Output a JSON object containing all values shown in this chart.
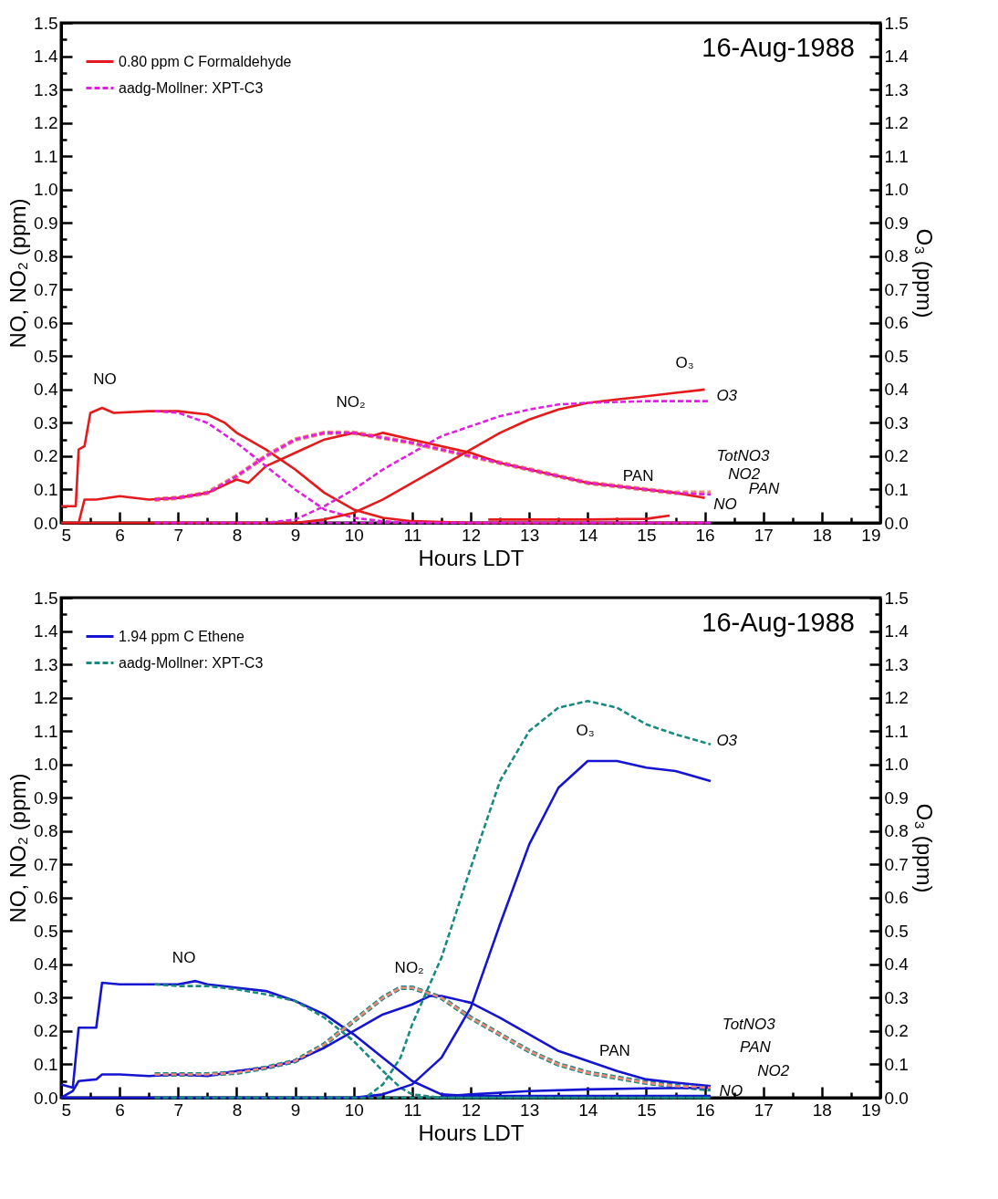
{
  "chart_data": [
    {
      "type": "line",
      "xlabel": "Hours LDT",
      "ylabel": "NO, NO₂ (ppm)",
      "y2label": "O₃ (ppm)",
      "legend": "top left",
      "xlim": [
        5,
        19
      ],
      "xticks": [
        5,
        {
          "value": 5.5,
          "label": null
        },
        6,
        {
          "value": 6.5,
          "label": null
        },
        7,
        {
          "value": 7.5,
          "label": null
        },
        8,
        {
          "value": 8.5,
          "label": null
        },
        9,
        {
          "value": 9.5,
          "label": null
        },
        10,
        {
          "value": 10.5,
          "label": null
        },
        11,
        {
          "value": 11.5,
          "label": null
        },
        12,
        {
          "value": 12.5,
          "label": null
        },
        13,
        {
          "value": 13.5,
          "label": null
        },
        14,
        {
          "value": 14.5,
          "label": null
        },
        15,
        {
          "value": 15.5,
          "label": null
        },
        16,
        {
          "value": 16.5,
          "label": null
        },
        17,
        {
          "value": 17.5,
          "label": null
        },
        18,
        {
          "value": 18.5,
          "label": null
        },
        19
      ],
      "ylim": [
        0,
        1.5
      ],
      "yticks": [
        {
          "value": 0,
          "label": "0.0"
        },
        {
          "value": 0.05,
          "label": null
        },
        0.1,
        {
          "value": 0.15,
          "label": null
        },
        0.2,
        {
          "value": 0.25,
          "label": null
        },
        0.3,
        {
          "value": 0.35,
          "label": null
        },
        0.4,
        {
          "value": 0.45,
          "label": null
        },
        0.5,
        {
          "value": 0.55,
          "label": null
        },
        0.6,
        {
          "value": 0.65,
          "label": null
        },
        0.7,
        {
          "value": 0.75,
          "label": null
        },
        0.8,
        {
          "value": 0.85,
          "label": null
        },
        0.9,
        {
          "value": 0.95,
          "label": null
        },
        {
          "value": 1,
          "label": "1.0"
        },
        {
          "value": 1.05,
          "label": null
        },
        1.1,
        {
          "value": 1.15,
          "label": null
        },
        1.2,
        {
          "value": 1.25,
          "label": null
        },
        1.3,
        {
          "value": 1.35,
          "label": null
        },
        1.4,
        {
          "value": 1.45,
          "label": null
        },
        1.5
      ],
      "y2lim": [
        0,
        1.5
      ],
      "y2ticks": [
        {
          "value": 0,
          "label": "0.0"
        },
        {
          "value": 0.05,
          "label": null
        },
        0.1,
        {
          "value": 0.15,
          "label": null
        },
        0.2,
        {
          "value": 0.25,
          "label": null
        },
        0.3,
        {
          "value": 0.35,
          "label": null
        },
        0.4,
        {
          "value": 0.45,
          "label": null
        },
        0.5,
        {
          "value": 0.55,
          "label": null
        },
        0.6,
        {
          "value": 0.65,
          "label": null
        },
        0.7,
        {
          "value": 0.75,
          "label": null
        },
        0.8,
        {
          "value": 0.85,
          "label": null
        },
        0.9,
        {
          "value": 0.95,
          "label": null
        },
        {
          "value": 1,
          "label": "1.0"
        },
        {
          "value": 1.05,
          "label": null
        },
        1.1,
        {
          "value": 1.15,
          "label": null
        },
        1.2,
        {
          "value": 1.25,
          "label": null
        },
        1.3,
        {
          "value": 1.35,
          "label": null
        },
        1.4,
        {
          "value": 1.45,
          "label": null
        },
        1.5
      ],
      "annotations": [
        "16-Aug-1988",
        "NO",
        "NO₂",
        "O₃",
        "PAN",
        "O3",
        "TotNO3",
        "NO2",
        "PAN",
        "NO"
      ],
      "series": [
        {
          "name": "0.80 ppm C Formaldehyde",
          "color": "#e41a1c",
          "line_style": "solid",
          "x": [
            5,
            5.25,
            5.3,
            5.4,
            5.5,
            5.7,
            5.9,
            6.5,
            7,
            7.5,
            7.8,
            8,
            8.2,
            8.5,
            9,
            9.5,
            10,
            10.5,
            11,
            12,
            16
          ],
          "values": [
            0.05,
            0.05,
            0.22,
            0.23,
            0.33,
            0.345,
            0.33,
            0.335,
            0.335,
            0.325,
            0.3,
            0.27,
            0.25,
            0.22,
            0.16,
            0.09,
            0.04,
            0.015,
            0.005,
            0,
            0
          ]
        },
        {
          "color": "#e41a1c",
          "line_style": "solid",
          "x": [
            5,
            5.3,
            5.4,
            5.6,
            6,
            6.5,
            7,
            7.5,
            8,
            8.2,
            8.5,
            9,
            9.5,
            10,
            10.3,
            10.5,
            11,
            11.5,
            12,
            12.5,
            13,
            13.5,
            14,
            14.5,
            15,
            15.5,
            16
          ],
          "values": [
            0,
            0,
            0.07,
            0.07,
            0.08,
            0.07,
            0.075,
            0.09,
            0.13,
            0.12,
            0.17,
            0.21,
            0.25,
            0.27,
            0.26,
            0.27,
            0.25,
            0.23,
            0.21,
            0.18,
            0.16,
            0.14,
            0.12,
            0.11,
            0.1,
            0.09,
            0.075
          ]
        },
        {
          "color": "#e41a1c",
          "line_style": "solid",
          "axis": "y2",
          "x": [
            5,
            9,
            9.5,
            10,
            10.5,
            11,
            11.5,
            12,
            12.5,
            13,
            13.5,
            14,
            14.5,
            15,
            15.5,
            16
          ],
          "values": [
            0,
            0,
            0.01,
            0.03,
            0.07,
            0.12,
            0.17,
            0.22,
            0.27,
            0.31,
            0.34,
            0.36,
            0.37,
            0.38,
            0.39,
            0.4
          ]
        },
        {
          "color": "#e41a1c",
          "line_style": "solid",
          "x": [
            12.3,
            13,
            14,
            15,
            15.4
          ],
          "values": [
            0.01,
            0.01,
            0.01,
            0.012,
            0.022
          ]
        },
        {
          "name": "aadg-Mollner: XPT-C3",
          "color": "#e020e0",
          "line_style": "dashed",
          "x": [
            6.6,
            7,
            7.5,
            8,
            8.5,
            9,
            9.5,
            10,
            10.5,
            11,
            16.1
          ],
          "values": [
            0.335,
            0.33,
            0.3,
            0.24,
            0.17,
            0.1,
            0.04,
            0.015,
            0.005,
            0,
            0
          ]
        },
        {
          "color": "#e020e0",
          "line_style": "dashed",
          "x": [
            6.6,
            7,
            7.5,
            8,
            8.5,
            9,
            9.5,
            10,
            10.5,
            11,
            11.5,
            12,
            12.5,
            13,
            13.5,
            14,
            14.5,
            15,
            15.5,
            16.1
          ],
          "values": [
            0.07,
            0.075,
            0.09,
            0.14,
            0.2,
            0.25,
            0.27,
            0.27,
            0.255,
            0.24,
            0.22,
            0.2,
            0.18,
            0.16,
            0.14,
            0.12,
            0.11,
            0.1,
            0.09,
            0.085
          ]
        },
        {
          "color": "#f08878",
          "line_style": "dashed",
          "x": [
            6.6,
            7,
            7.5,
            8,
            8.5,
            9,
            9.5,
            10,
            10.5,
            11,
            11.5,
            12,
            12.5,
            13,
            13.5,
            14,
            14.5,
            15,
            15.5,
            16.1
          ],
          "values": [
            0.07,
            0.075,
            0.09,
            0.14,
            0.2,
            0.25,
            0.27,
            0.27,
            0.255,
            0.24,
            0.22,
            0.2,
            0.18,
            0.16,
            0.14,
            0.12,
            0.11,
            0.1,
            0.09,
            0.09
          ]
        },
        {
          "color": "#e020e0",
          "line_style": "dashed",
          "axis": "y2",
          "x": [
            6.6,
            8.5,
            9,
            9.5,
            10,
            10.5,
            11,
            11.5,
            12,
            12.5,
            13,
            13.5,
            14,
            15,
            16.1
          ],
          "values": [
            0,
            0,
            0.01,
            0.05,
            0.1,
            0.16,
            0.21,
            0.26,
            0.29,
            0.32,
            0.34,
            0.355,
            0.36,
            0.365,
            0.365
          ]
        },
        {
          "color": "#e020e0",
          "line_style": "dashed",
          "x": [
            6.6,
            16.1
          ],
          "values": [
            0,
            0
          ]
        }
      ]
    },
    {
      "type": "line",
      "xlabel": "Hours LDT",
      "ylabel": "NO, NO₂ (ppm)",
      "y2label": "O₃ (ppm)",
      "legend": "top left",
      "xlim": [
        5,
        19
      ],
      "xticks": [
        5,
        {
          "value": 5.5,
          "label": null
        },
        6,
        {
          "value": 6.5,
          "label": null
        },
        7,
        {
          "value": 7.5,
          "label": null
        },
        8,
        {
          "value": 8.5,
          "label": null
        },
        9,
        {
          "value": 9.5,
          "label": null
        },
        10,
        {
          "value": 10.5,
          "label": null
        },
        11,
        {
          "value": 11.5,
          "label": null
        },
        12,
        {
          "value": 12.5,
          "label": null
        },
        13,
        {
          "value": 13.5,
          "label": null
        },
        14,
        {
          "value": 14.5,
          "label": null
        },
        15,
        {
          "value": 15.5,
          "label": null
        },
        16,
        {
          "value": 16.5,
          "label": null
        },
        17,
        {
          "value": 17.5,
          "label": null
        },
        18,
        {
          "value": 18.5,
          "label": null
        },
        19
      ],
      "ylim": [
        0,
        1.5
      ],
      "yticks": [
        {
          "value": 0,
          "label": "0.0"
        },
        {
          "value": 0.05,
          "label": null
        },
        0.1,
        {
          "value": 0.15,
          "label": null
        },
        0.2,
        {
          "value": 0.25,
          "label": null
        },
        0.3,
        {
          "value": 0.35,
          "label": null
        },
        0.4,
        {
          "value": 0.45,
          "label": null
        },
        0.5,
        {
          "value": 0.55,
          "label": null
        },
        0.6,
        {
          "value": 0.65,
          "label": null
        },
        0.7,
        {
          "value": 0.75,
          "label": null
        },
        0.8,
        {
          "value": 0.85,
          "label": null
        },
        0.9,
        {
          "value": 0.95,
          "label": null
        },
        {
          "value": 1,
          "label": "1.0"
        },
        {
          "value": 1.05,
          "label": null
        },
        1.1,
        {
          "value": 1.15,
          "label": null
        },
        1.2,
        {
          "value": 1.25,
          "label": null
        },
        1.3,
        {
          "value": 1.35,
          "label": null
        },
        1.4,
        {
          "value": 1.45,
          "label": null
        },
        1.5
      ],
      "y2lim": [
        0,
        1.5
      ],
      "y2ticks": [
        {
          "value": 0,
          "label": "0.0"
        },
        {
          "value": 0.05,
          "label": null
        },
        0.1,
        {
          "value": 0.15,
          "label": null
        },
        0.2,
        {
          "value": 0.25,
          "label": null
        },
        0.3,
        {
          "value": 0.35,
          "label": null
        },
        0.4,
        {
          "value": 0.45,
          "label": null
        },
        0.5,
        {
          "value": 0.55,
          "label": null
        },
        0.6,
        {
          "value": 0.65,
          "label": null
        },
        0.7,
        {
          "value": 0.75,
          "label": null
        },
        0.8,
        {
          "value": 0.85,
          "label": null
        },
        0.9,
        {
          "value": 0.95,
          "label": null
        },
        {
          "value": 1,
          "label": "1.0"
        },
        {
          "value": 1.05,
          "label": null
        },
        1.1,
        {
          "value": 1.15,
          "label": null
        },
        1.2,
        {
          "value": 1.25,
          "label": null
        },
        1.3,
        {
          "value": 1.35,
          "label": null
        },
        1.4,
        {
          "value": 1.45,
          "label": null
        },
        1.5
      ],
      "annotations": [
        "16-Aug-1988",
        "NO",
        "NO₂",
        "O₃",
        "PAN",
        "O3",
        "TotNO3",
        "PAN",
        "NO2",
        "NO"
      ],
      "series": [
        {
          "name": "1.94 ppm C Ethene",
          "color": "#1515d0",
          "line_style": "solid",
          "x": [
            5,
            5.2,
            5.3,
            5.6,
            5.7,
            6,
            6.5,
            7,
            7.3,
            7.5,
            8,
            8.5,
            9,
            9.5,
            10,
            10.5,
            11,
            11.5,
            12,
            16.1
          ],
          "values": [
            0.04,
            0.03,
            0.21,
            0.21,
            0.345,
            0.34,
            0.34,
            0.34,
            0.35,
            0.34,
            0.33,
            0.32,
            0.29,
            0.25,
            0.19,
            0.12,
            0.05,
            0.01,
            0.005,
            0.005
          ]
        },
        {
          "color": "#1515d0",
          "line_style": "solid",
          "x": [
            5,
            5.2,
            5.3,
            5.6,
            5.7,
            6,
            6.5,
            7,
            7.5,
            8,
            8.5,
            9,
            9.5,
            10,
            10.5,
            11,
            11.3,
            11.5,
            12,
            12.5,
            13,
            13.5,
            14,
            14.5,
            15,
            15.5,
            16.1
          ],
          "values": [
            0,
            0.02,
            0.05,
            0.055,
            0.07,
            0.07,
            0.065,
            0.07,
            0.065,
            0.08,
            0.09,
            0.11,
            0.15,
            0.2,
            0.25,
            0.28,
            0.305,
            0.305,
            0.285,
            0.24,
            0.19,
            0.14,
            0.11,
            0.08,
            0.055,
            0.045,
            0.035
          ]
        },
        {
          "color": "#1515d0",
          "line_style": "solid",
          "axis": "y2",
          "x": [
            5,
            10,
            10.5,
            11,
            11.5,
            12,
            12.5,
            13,
            13.5,
            14,
            14.5,
            15,
            15.5,
            16.1
          ],
          "values": [
            0,
            0,
            0.01,
            0.04,
            0.12,
            0.27,
            0.52,
            0.76,
            0.93,
            1.01,
            1.01,
            0.99,
            0.98,
            0.95
          ]
        },
        {
          "color": "#1515d0",
          "line_style": "solid",
          "x": [
            11.5,
            12,
            13,
            14,
            15,
            16.1
          ],
          "values": [
            0.005,
            0.01,
            0.02,
            0.025,
            0.028,
            0.03
          ]
        },
        {
          "name": "aadg-Mollner: XPT-C3",
          "color": "#1a8a80",
          "line_style": "dashed",
          "x": [
            6.6,
            7,
            7.5,
            8,
            8.5,
            9,
            9.5,
            10,
            10.5,
            10.8,
            11,
            11.5,
            16.1
          ],
          "values": [
            0.34,
            0.335,
            0.335,
            0.325,
            0.31,
            0.29,
            0.24,
            0.17,
            0.08,
            0.03,
            0.01,
            0,
            0
          ]
        },
        {
          "color": "#f08878",
          "line_style": "dashed",
          "x": [
            6.6,
            7,
            7.5,
            8,
            8.5,
            9,
            9.5,
            10,
            10.5,
            10.8,
            11,
            11.5,
            12,
            12.5,
            13,
            13.5,
            14,
            14.5,
            15,
            15.5,
            16.1
          ],
          "values": [
            0.07,
            0.07,
            0.07,
            0.075,
            0.09,
            0.11,
            0.16,
            0.23,
            0.3,
            0.33,
            0.33,
            0.3,
            0.24,
            0.19,
            0.14,
            0.1,
            0.075,
            0.06,
            0.045,
            0.035,
            0.03
          ]
        },
        {
          "color": "#1a8a80",
          "line_style": "dashed",
          "x": [
            6.6,
            7,
            7.5,
            8,
            8.5,
            9,
            9.5,
            10,
            10.5,
            10.8,
            11,
            11.5,
            12,
            12.5,
            13,
            13.5,
            14,
            14.5,
            15,
            15.5,
            16.1
          ],
          "values": [
            0.07,
            0.07,
            0.07,
            0.075,
            0.09,
            0.11,
            0.16,
            0.23,
            0.3,
            0.33,
            0.33,
            0.3,
            0.24,
            0.19,
            0.14,
            0.1,
            0.075,
            0.06,
            0.045,
            0.035,
            0.025
          ]
        },
        {
          "color": "#1a8a80",
          "line_style": "dashed",
          "axis": "y2",
          "x": [
            6.6,
            10.2,
            10.5,
            10.8,
            11,
            11.5,
            12,
            12.5,
            13,
            13.5,
            14,
            14.5,
            15,
            15.5,
            16.1
          ],
          "values": [
            0,
            0,
            0.04,
            0.12,
            0.22,
            0.42,
            0.69,
            0.95,
            1.1,
            1.17,
            1.19,
            1.17,
            1.12,
            1.09,
            1.06
          ]
        },
        {
          "color": "#1a8a80",
          "line_style": "dashed",
          "x": [
            6.6,
            16.1
          ],
          "values": [
            0,
            0
          ]
        }
      ]
    }
  ]
}
